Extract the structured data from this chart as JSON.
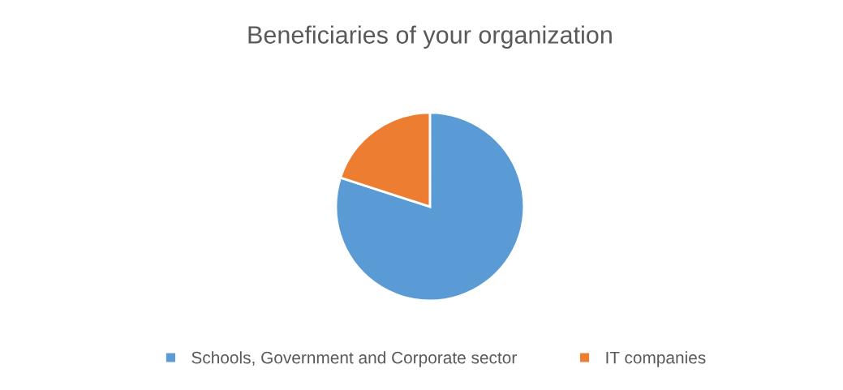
{
  "chart_data": {
    "type": "pie",
    "title": "Beneficiaries of your organization",
    "categories": [
      "Schools, Government and Corporate sector",
      "IT companies"
    ],
    "values": [
      80,
      20
    ],
    "colors": [
      "#5b9bd5",
      "#ed7d31"
    ],
    "legend": "bottom"
  }
}
